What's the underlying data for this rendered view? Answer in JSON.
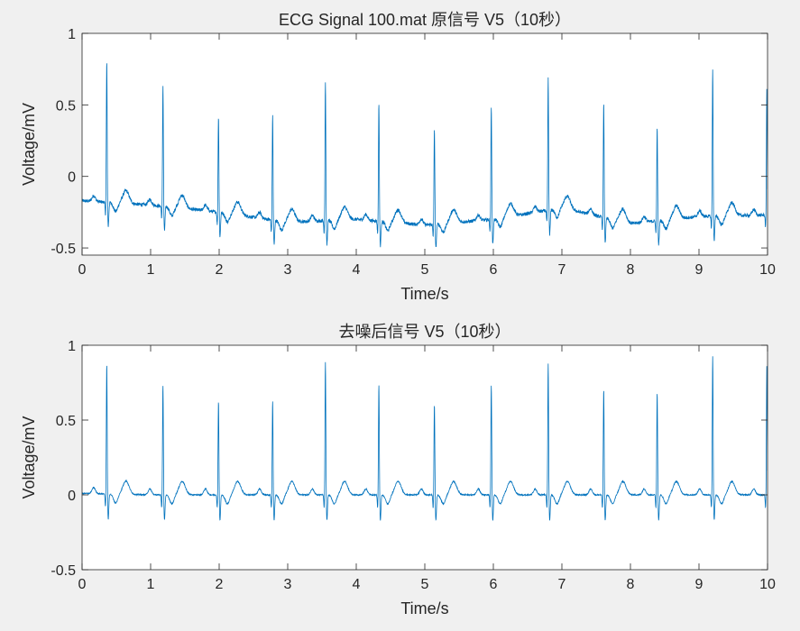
{
  "chart_data": [
    {
      "type": "line",
      "title": "ECG Signal 100.mat 原信号 V5（10秒）",
      "xlabel": "Time/s",
      "ylabel": "Voltage/mV",
      "xlim": [
        0,
        10
      ],
      "ylim": [
        -0.55,
        1
      ],
      "xticks": [
        0,
        1,
        2,
        3,
        4,
        5,
        6,
        7,
        8,
        9,
        10
      ],
      "yticks": [
        -0.5,
        0,
        0.5,
        1
      ],
      "ytick_labels": [
        "-0.5",
        "0",
        "0.5",
        "1"
      ],
      "grid": false,
      "color": "#0072BD",
      "r_peaks": {
        "t": [
          0.36,
          1.18,
          1.99,
          2.78,
          3.55,
          4.33,
          5.14,
          5.97,
          6.8,
          7.61,
          8.39,
          9.2,
          9.99
        ],
        "v": [
          0.81,
          0.64,
          0.43,
          0.43,
          0.67,
          0.52,
          0.34,
          0.49,
          0.69,
          0.51,
          0.34,
          0.76,
          0.63
        ]
      },
      "baseline": {
        "t": [
          0,
          1,
          2,
          3,
          4,
          5,
          6,
          7,
          8,
          9,
          10
        ],
        "v": [
          -0.17,
          -0.2,
          -0.25,
          -0.32,
          -0.3,
          -0.34,
          -0.3,
          -0.22,
          -0.33,
          -0.28,
          -0.27
        ]
      },
      "noise": 0.012
    },
    {
      "type": "line",
      "title": "去噪后信号 V5（10秒）",
      "xlabel": "Time/s",
      "ylabel": "Voltage/mV",
      "xlim": [
        0,
        10
      ],
      "ylim": [
        -0.5,
        1
      ],
      "xticks": [
        0,
        1,
        2,
        3,
        4,
        5,
        6,
        7,
        8,
        9,
        10
      ],
      "yticks": [
        -0.5,
        0,
        0.5,
        1
      ],
      "ytick_labels": [
        "-0.5",
        "0",
        "0.5",
        "1"
      ],
      "grid": false,
      "color": "#0072BD",
      "r_peaks": {
        "t": [
          0.36,
          1.18,
          1.99,
          2.78,
          3.55,
          4.33,
          5.14,
          5.97,
          6.8,
          7.61,
          8.39,
          9.2,
          9.99
        ],
        "v": [
          0.88,
          0.74,
          0.63,
          0.63,
          0.89,
          0.74,
          0.61,
          0.74,
          0.88,
          0.71,
          0.69,
          0.93,
          0.88
        ]
      },
      "baseline": {
        "t": [
          0,
          1,
          2,
          3,
          4,
          5,
          6,
          7,
          8,
          9,
          10
        ],
        "v": [
          0.01,
          0.0,
          0.0,
          0.0,
          0.0,
          0.0,
          0.0,
          0.0,
          0.0,
          0.0,
          0.0
        ]
      },
      "noise": 0.004
    }
  ]
}
